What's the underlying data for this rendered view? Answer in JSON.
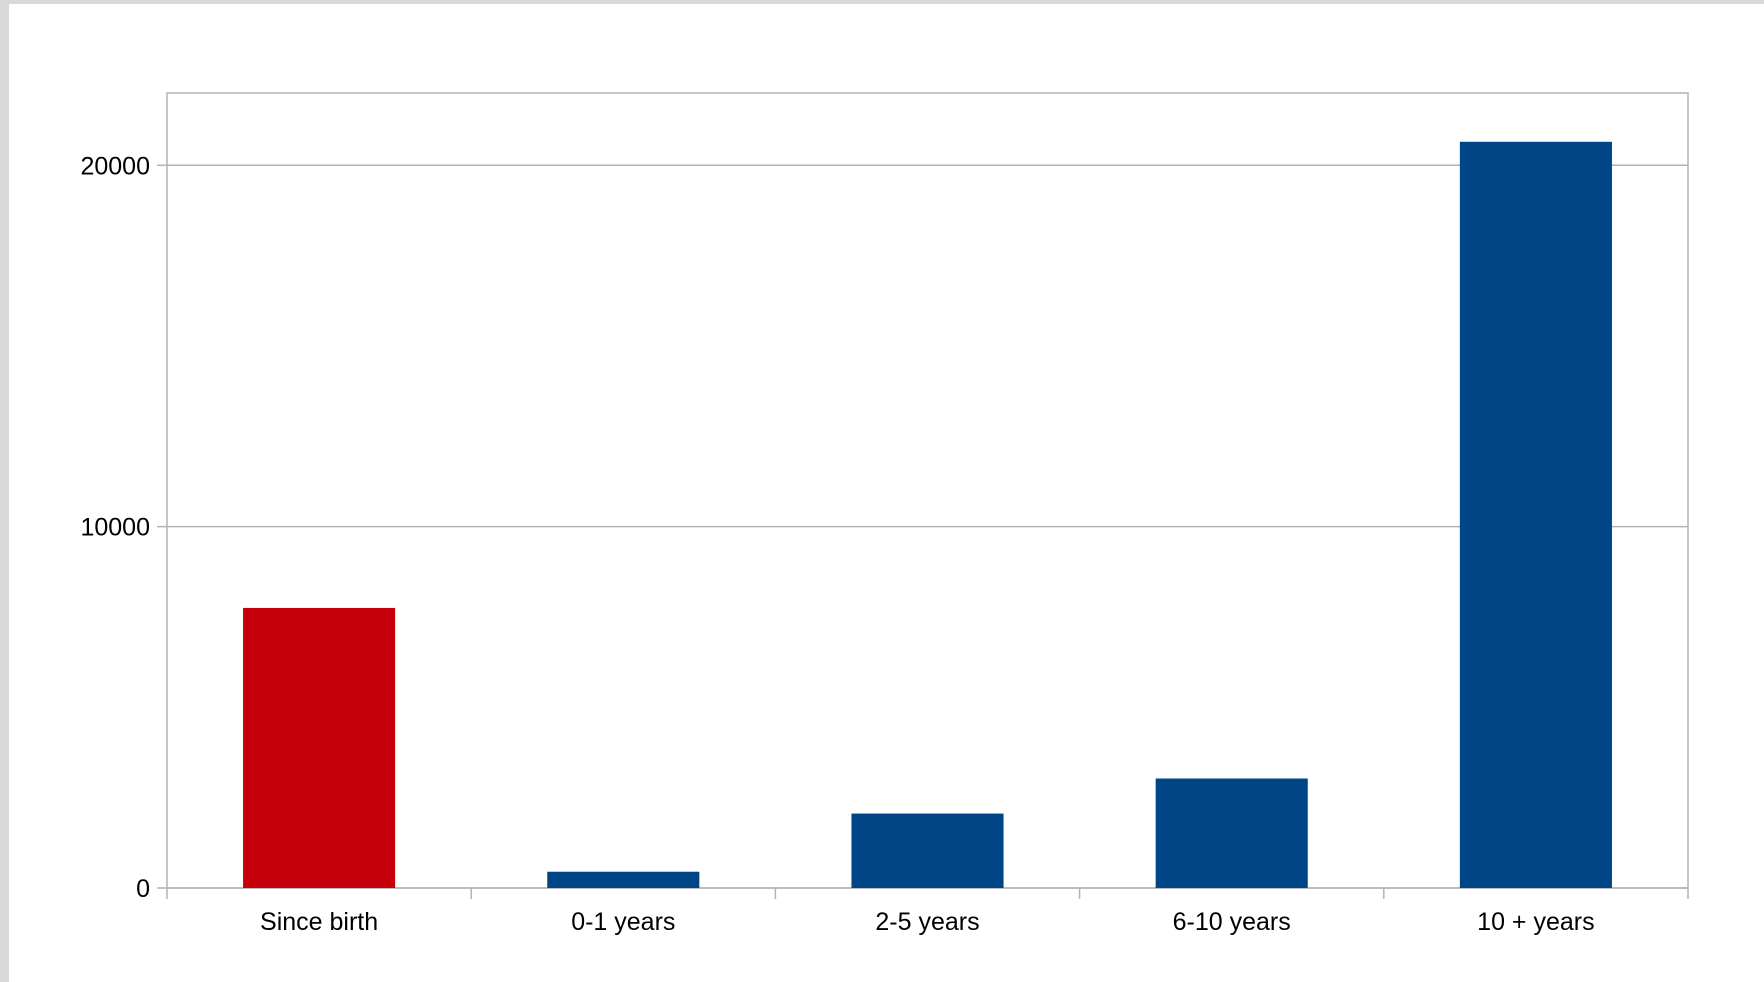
{
  "chart_data": {
    "type": "bar",
    "title": "",
    "xlabel": "",
    "ylabel": "",
    "categories": [
      "Since birth",
      "0-1 years",
      "2-5 years",
      "6-10 years",
      "10 + years"
    ],
    "values": [
      7750,
      450,
      2060,
      3030,
      20650
    ],
    "bar_colors": [
      "#c5000b",
      "#004586",
      "#004586",
      "#004586",
      "#004586"
    ],
    "ylim": [
      0,
      22000
    ],
    "yticks": [
      0,
      10000,
      20000
    ],
    "grid": true,
    "legend": "none"
  },
  "colors": {
    "background": "#ffffff",
    "frame_border": "#d9d9d9",
    "gridline": "#b3b3b3",
    "highlight_bar": "#c5000b",
    "default_bar": "#004586"
  }
}
